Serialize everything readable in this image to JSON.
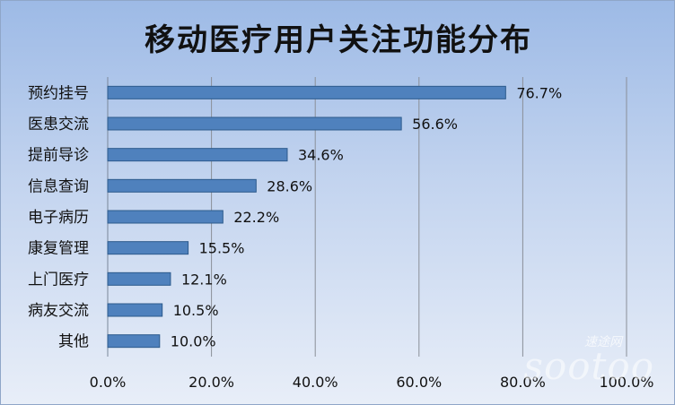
{
  "chart_data": {
    "type": "bar",
    "orientation": "horizontal",
    "title": "移动医疗用户关注功能分布",
    "categories": [
      "预约挂号",
      "医患交流",
      "提前导诊",
      "信息查询",
      "电子病历",
      "康复管理",
      "上门医疗",
      "病友交流",
      "其他"
    ],
    "values": [
      76.7,
      56.6,
      34.6,
      28.6,
      22.2,
      15.5,
      12.1,
      10.5,
      10.0
    ],
    "value_labels": [
      "76.7%",
      "56.6%",
      "34.6%",
      "28.6%",
      "22.2%",
      "15.5%",
      "12.1%",
      "10.5%",
      "10.0%"
    ],
    "xlim": [
      0,
      100
    ],
    "x_ticks": [
      "0.0%",
      "20.0%",
      "40.0%",
      "60.0%",
      "80.0%",
      "100.0%"
    ],
    "x_tick_values": [
      0,
      20,
      40,
      60,
      80,
      100
    ],
    "grid": "vertical",
    "legend": "none",
    "bar_color": "#4f81bd",
    "bar_edge_color": "#2c5a8c"
  },
  "watermark": {
    "text": "sootoo",
    "sub_text": "速途网"
  }
}
